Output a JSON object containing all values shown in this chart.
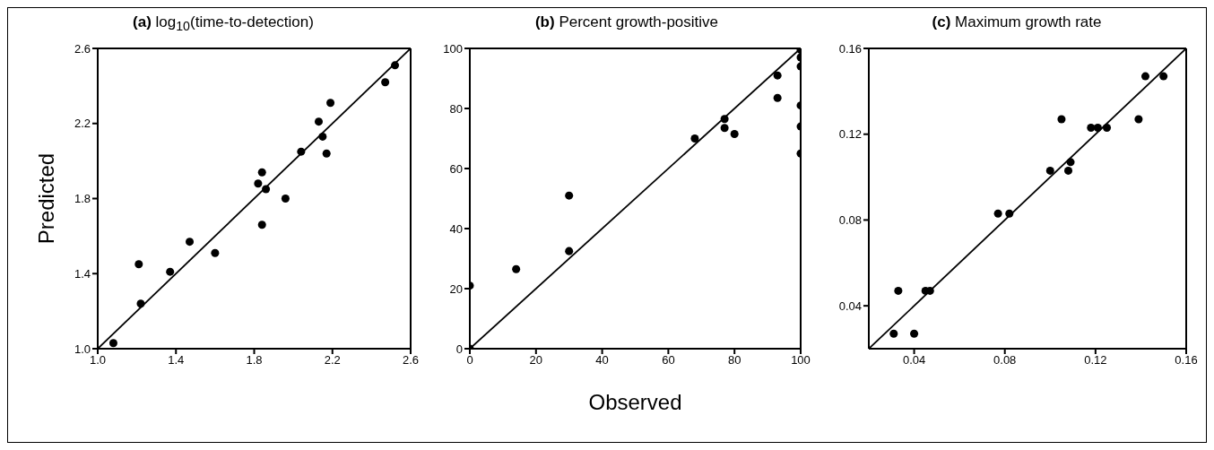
{
  "chart_data": [
    {
      "type": "scatter",
      "title": "(a) log$_{10}$(time-to-detection)",
      "ylabel": "Predicted",
      "xlim": [
        1.0,
        2.6
      ],
      "ylim": [
        1.0,
        2.6
      ],
      "xticks": [
        {
          "value": 1.0,
          "label": "1.0"
        },
        1.4,
        1.8,
        2.2,
        2.6
      ],
      "yticks": [
        {
          "value": 1.0,
          "label": "1.0"
        },
        1.4,
        1.8,
        2.2,
        2.6
      ],
      "series": [
        {
          "marker": "circle",
          "color": "#000000",
          "x": [
            1.08,
            1.21,
            1.22,
            1.37,
            1.47,
            1.6,
            1.82,
            1.84,
            1.86,
            1.84,
            1.96,
            2.04,
            2.13,
            2.15,
            2.17,
            2.19,
            2.47,
            2.52
          ],
          "values": [
            1.03,
            1.45,
            1.24,
            1.41,
            1.57,
            1.51,
            1.88,
            1.94,
            1.85,
            1.66,
            1.8,
            2.05,
            2.21,
            2.13,
            2.04,
            2.31,
            2.42,
            2.51
          ]
        },
        {
          "type": "line",
          "marker": "none",
          "color": "#000000",
          "x": [
            1.0,
            2.6
          ],
          "values": [
            1.0,
            2.6
          ]
        }
      ]
    },
    {
      "type": "scatter",
      "title": "(b) Percent growth-positive",
      "xlabel": "Observed",
      "xlim": [
        0,
        100
      ],
      "ylim": [
        0,
        100
      ],
      "xticks": [
        0,
        20,
        40,
        60,
        80,
        100
      ],
      "yticks": [
        0,
        20,
        40,
        60,
        80,
        100
      ],
      "series": [
        {
          "marker": "circle",
          "color": "#000000",
          "x": [
            0,
            0,
            14,
            30,
            30,
            68,
            77,
            77,
            80,
            93,
            93,
            100,
            100,
            100,
            100,
            100,
            100
          ],
          "values": [
            0,
            21,
            26.5,
            51,
            32.5,
            70,
            76.5,
            73.5,
            71.5,
            91,
            83.5,
            99.5,
            97,
            94,
            81,
            74,
            65
          ]
        },
        {
          "type": "line",
          "marker": "none",
          "color": "#000000",
          "x": [
            0,
            100
          ],
          "values": [
            0,
            100
          ]
        }
      ]
    },
    {
      "type": "scatter",
      "title": "(c) Maximum growth rate",
      "xlim": [
        0.02,
        0.16
      ],
      "ylim": [
        0.02,
        0.16
      ],
      "xticks": [
        0.04,
        0.08,
        0.12,
        0.16
      ],
      "yticks": [
        0.04,
        0.08,
        0.12,
        0.16
      ],
      "series": [
        {
          "marker": "circle",
          "color": "#000000",
          "x": [
            0.031,
            0.04,
            0.033,
            0.045,
            0.047,
            0.077,
            0.082,
            0.1,
            0.108,
            0.109,
            0.105,
            0.118,
            0.121,
            0.125,
            0.139,
            0.142,
            0.15
          ],
          "values": [
            0.027,
            0.027,
            0.047,
            0.047,
            0.047,
            0.083,
            0.083,
            0.103,
            0.103,
            0.107,
            0.127,
            0.123,
            0.123,
            0.123,
            0.127,
            0.147,
            0.147
          ]
        },
        {
          "type": "line",
          "marker": "none",
          "color": "#000000",
          "x": [
            0.02,
            0.16
          ],
          "values": [
            0.02,
            0.16
          ]
        }
      ]
    }
  ]
}
